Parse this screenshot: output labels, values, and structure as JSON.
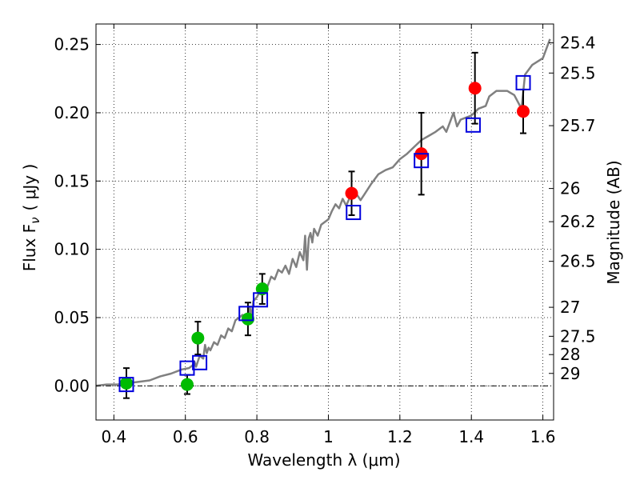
{
  "chart_data": {
    "type": "scatter",
    "xlabel": "Wavelength  λ (μm)",
    "ylabel_left": "Flux  F",
    "ylabel_left_sub": "ν",
    "ylabel_left_unit": "( μJy )",
    "ylabel_right": "Magnitude (AB)",
    "xlim": [
      0.35,
      1.63
    ],
    "ylim": [
      -0.025,
      0.265
    ],
    "grid": true,
    "x_ticks": [
      {
        "value": 0.4,
        "label": "0.4"
      },
      {
        "value": 0.6,
        "label": "0.6"
      },
      {
        "value": 0.8,
        "label": "0.8"
      },
      {
        "value": 1.0,
        "label": "1"
      },
      {
        "value": 1.2,
        "label": "1.2"
      },
      {
        "value": 1.4,
        "label": "1.4"
      },
      {
        "value": 1.6,
        "label": "1.6"
      }
    ],
    "y_ticks": [
      {
        "value": 0.0,
        "label": "0.00"
      },
      {
        "value": 0.05,
        "label": "0.05"
      },
      {
        "value": 0.1,
        "label": "0.10"
      },
      {
        "value": 0.15,
        "label": "0.15"
      },
      {
        "value": 0.2,
        "label": "0.20"
      },
      {
        "value": 0.25,
        "label": "0.25"
      }
    ],
    "mag_ticks": [
      {
        "mag": 25.4,
        "label": "25.4"
      },
      {
        "mag": 25.5,
        "label": "25.5"
      },
      {
        "mag": 25.7,
        "label": "25.7"
      },
      {
        "mag": 26,
        "label": "26"
      },
      {
        "mag": 26.2,
        "label": "26.2"
      },
      {
        "mag": 26.5,
        "label": "26.5"
      },
      {
        "mag": 27,
        "label": "27"
      },
      {
        "mag": 27.5,
        "label": "27.5"
      },
      {
        "mag": 28,
        "label": "28"
      },
      {
        "mag": 29,
        "label": "29"
      }
    ],
    "mag_zeropoint": 23.9,
    "series": [
      {
        "kind": "model_spectrum",
        "color": "#808080",
        "x": [
          0.35,
          0.38,
          0.41,
          0.44,
          0.47,
          0.5,
          0.53,
          0.56,
          0.59,
          0.61,
          0.62,
          0.625,
          0.63,
          0.64,
          0.65,
          0.655,
          0.66,
          0.665,
          0.67,
          0.68,
          0.69,
          0.7,
          0.71,
          0.72,
          0.73,
          0.74,
          0.75,
          0.76,
          0.77,
          0.775,
          0.78,
          0.785,
          0.79,
          0.8,
          0.81,
          0.82,
          0.83,
          0.84,
          0.85,
          0.86,
          0.87,
          0.88,
          0.89,
          0.9,
          0.91,
          0.92,
          0.93,
          0.935,
          0.94,
          0.945,
          0.95,
          0.955,
          0.96,
          0.97,
          0.98,
          0.99,
          1.0,
          1.01,
          1.02,
          1.03,
          1.04,
          1.05,
          1.06,
          1.07,
          1.08,
          1.09,
          1.1,
          1.12,
          1.14,
          1.16,
          1.18,
          1.2,
          1.22,
          1.24,
          1.26,
          1.28,
          1.3,
          1.32,
          1.33,
          1.35,
          1.36,
          1.37,
          1.38,
          1.4,
          1.42,
          1.44,
          1.45,
          1.47,
          1.5,
          1.52,
          1.54,
          1.55,
          1.57,
          1.6,
          1.62
        ],
        "y": [
          0.0,
          0.001,
          0.001,
          0.002,
          0.003,
          0.004,
          0.007,
          0.009,
          0.012,
          0.013,
          0.015,
          0.018,
          0.014,
          0.022,
          0.02,
          0.03,
          0.024,
          0.028,
          0.026,
          0.032,
          0.03,
          0.037,
          0.035,
          0.042,
          0.04,
          0.048,
          0.05,
          0.052,
          0.048,
          0.045,
          0.058,
          0.05,
          0.062,
          0.065,
          0.07,
          0.075,
          0.073,
          0.08,
          0.078,
          0.085,
          0.083,
          0.088,
          0.082,
          0.093,
          0.087,
          0.098,
          0.092,
          0.11,
          0.085,
          0.108,
          0.112,
          0.105,
          0.115,
          0.11,
          0.118,
          0.12,
          0.122,
          0.128,
          0.133,
          0.13,
          0.137,
          0.132,
          0.138,
          0.143,
          0.14,
          0.136,
          0.14,
          0.148,
          0.155,
          0.158,
          0.16,
          0.166,
          0.17,
          0.175,
          0.18,
          0.183,
          0.186,
          0.19,
          0.186,
          0.2,
          0.19,
          0.195,
          0.196,
          0.198,
          0.203,
          0.205,
          0.212,
          0.216,
          0.216,
          0.213,
          0.203,
          0.228,
          0.235,
          0.24,
          0.254
        ]
      },
      {
        "kind": "observed_green",
        "color": "#00bb00",
        "x": [
          0.435,
          0.605,
          0.635,
          0.775,
          0.815
        ],
        "y": [
          0.002,
          0.001,
          0.035,
          0.049,
          0.071
        ],
        "yerr": [
          0.011,
          0.007,
          0.012,
          0.012,
          0.011
        ]
      },
      {
        "kind": "observed_red",
        "color": "#ff0000",
        "x": [
          1.065,
          1.26,
          1.41,
          1.545
        ],
        "y": [
          0.141,
          0.17,
          0.218,
          0.201
        ],
        "yerr": [
          0.016,
          0.03,
          0.026,
          0.016
        ]
      },
      {
        "kind": "model_photometry",
        "color": "#0000dd",
        "x": [
          0.435,
          0.605,
          0.64,
          0.77,
          0.81,
          1.07,
          1.26,
          1.405,
          1.545
        ],
        "y": [
          0.001,
          0.013,
          0.017,
          0.053,
          0.063,
          0.127,
          0.165,
          0.191,
          0.222
        ]
      }
    ]
  }
}
